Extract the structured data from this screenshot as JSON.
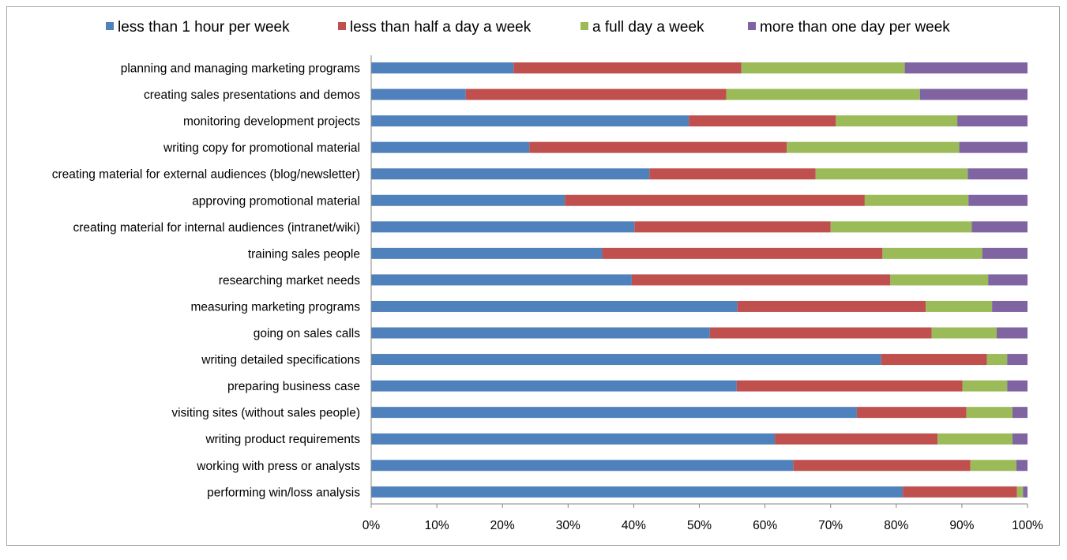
{
  "chart_data": {
    "type": "bar",
    "orientation": "horizontal",
    "stacked": "percent",
    "title": "",
    "xlabel": "",
    "ylabel": "",
    "xlim": [
      0,
      100
    ],
    "x_ticks": [
      "0%",
      "10%",
      "20%",
      "30%",
      "40%",
      "50%",
      "60%",
      "70%",
      "80%",
      "90%",
      "100%"
    ],
    "legend_position": "top",
    "categories": [
      "planning and managing marketing  programs",
      "creating sales presentations and demos",
      "monitoring development projects",
      "writing copy for promotional material",
      "creating material for external audiences (blog/newsletter)",
      "approving promotional material",
      "creating material for internal audiences (intranet/wiki)",
      "training sales people",
      "researching market needs",
      "measuring marketing programs",
      "going on sales calls",
      "writing detailed specifications",
      "preparing business case",
      "visiting sites (without sales people)",
      "writing product requirements",
      "working with press or analysts",
      "performing win/loss analysis"
    ],
    "series": [
      {
        "name": "less than 1 hour per week",
        "color": "#4f81bd",
        "values": [
          21.7,
          14.4,
          48.4,
          24.1,
          42.4,
          29.5,
          40.1,
          35.2,
          39.7,
          55.8,
          51.6,
          77.7,
          55.7,
          74.0,
          61.5,
          64.3,
          81.0
        ]
      },
      {
        "name": "less than half a day a week",
        "color": "#c0504d",
        "values": [
          34.7,
          39.7,
          22.4,
          39.2,
          25.3,
          45.7,
          29.9,
          42.7,
          39.4,
          28.7,
          33.8,
          16.1,
          34.4,
          16.7,
          24.8,
          27.0,
          17.4
        ]
      },
      {
        "name": "a full day a week",
        "color": "#9bbb59",
        "values": [
          24.9,
          29.5,
          18.5,
          26.3,
          23.2,
          15.8,
          21.5,
          15.2,
          14.9,
          10.1,
          9.9,
          3.1,
          6.8,
          7.0,
          11.4,
          7.0,
          0.9
        ]
      },
      {
        "name": "more than one day per week",
        "color": "#8064a2",
        "values": [
          18.7,
          16.4,
          10.7,
          10.4,
          9.1,
          9.0,
          8.5,
          6.9,
          6.0,
          5.4,
          4.7,
          3.1,
          3.1,
          2.3,
          2.3,
          1.7,
          0.7
        ]
      }
    ]
  }
}
